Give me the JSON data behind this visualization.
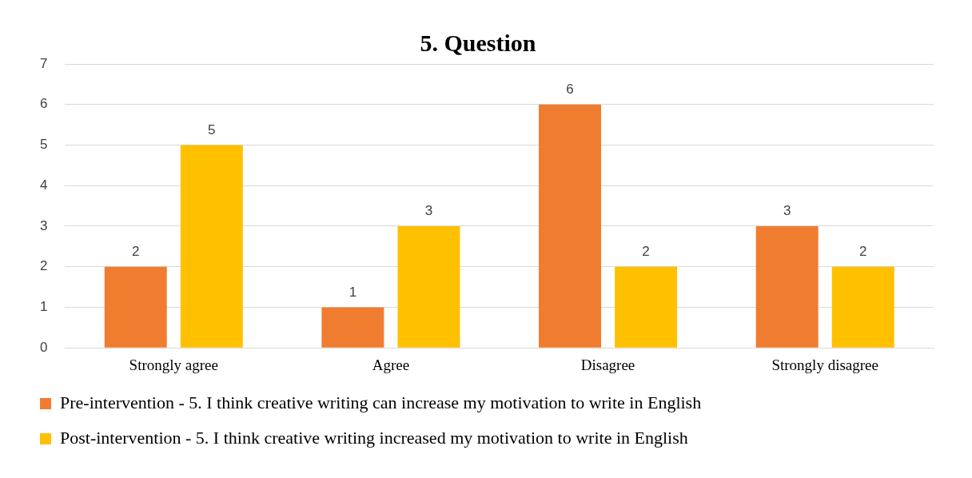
{
  "chart_data": {
    "type": "bar",
    "title": "5. Question",
    "categories": [
      "Strongly agree",
      "Agree",
      "Disagree",
      "Strongly disagree"
    ],
    "series": [
      {
        "name": "Pre-intervention - 5. I think creative writing can increase my motivation to write in English",
        "color": "#f07c30",
        "values": [
          2,
          1,
          6,
          3
        ]
      },
      {
        "name": "Post-intervention - 5. I think creative writing increased my motivation to write in English",
        "color": "#ffc000",
        "values": [
          5,
          3,
          2,
          2
        ]
      }
    ],
    "ylim": [
      0,
      7
    ],
    "yticks": [
      0,
      1,
      2,
      3,
      4,
      5,
      6,
      7
    ],
    "grid": "y",
    "legend": "bottom",
    "data_labels": true
  }
}
